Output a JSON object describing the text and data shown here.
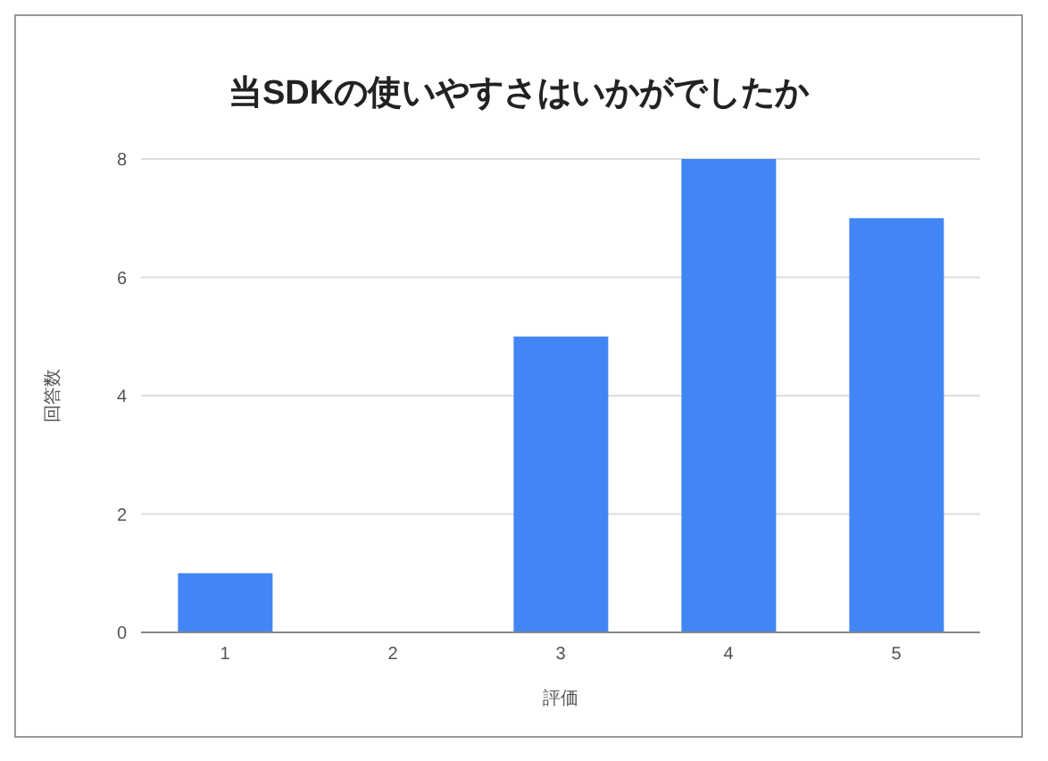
{
  "chart_data": {
    "type": "bar",
    "title": "当SDKの使いやすさはいかがでしたか",
    "xlabel": "評価",
    "ylabel": "回答数",
    "categories": [
      "1",
      "2",
      "3",
      "4",
      "5"
    ],
    "values": [
      1,
      0,
      5,
      8,
      7
    ],
    "color": "#4285f4",
    "ylim": [
      0,
      8
    ],
    "yticks": [
      0,
      2,
      4,
      6,
      8
    ],
    "grid": "y"
  }
}
